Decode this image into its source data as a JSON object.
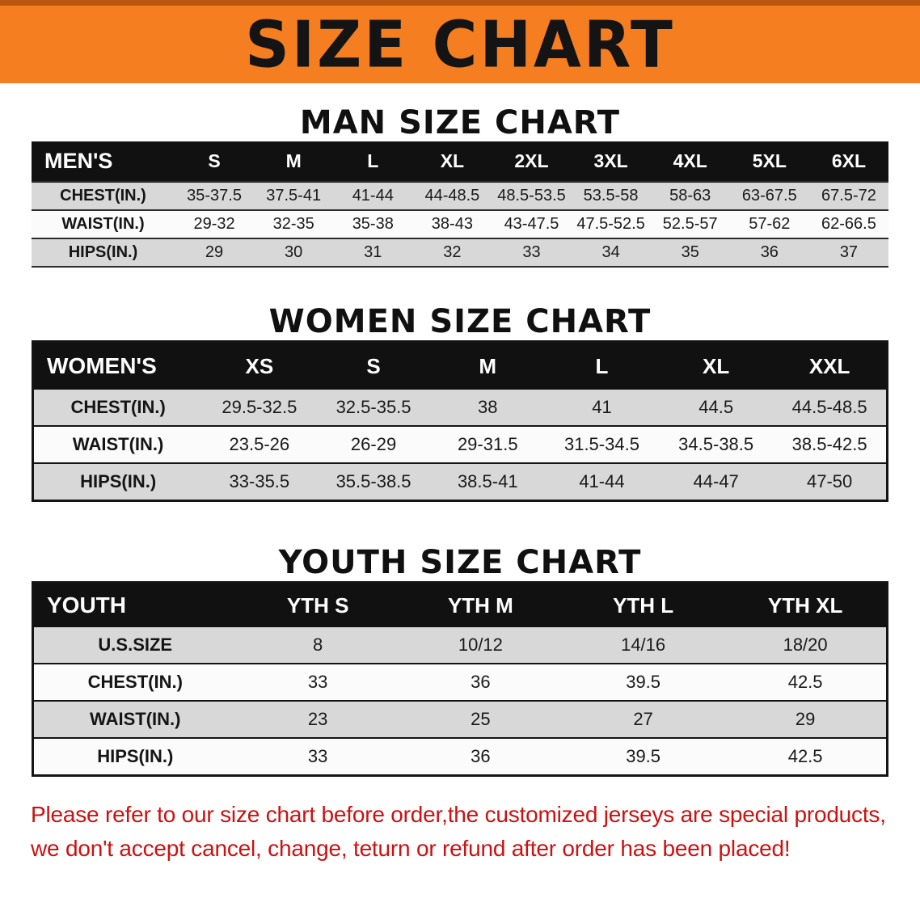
{
  "banner": {
    "title": "SIZE CHART"
  },
  "colors": {
    "banner_bg": "#F57E20",
    "banner_text": "#141414",
    "header_row_bg": "#111111",
    "row_gray": "#D8D8D8",
    "row_light": "#FBFBFB",
    "footer_text": "#CC1111"
  },
  "chart_data": [
    {
      "type": "table",
      "title": "MAN SIZE CHART",
      "header": [
        "MEN'S",
        "S",
        "M",
        "L",
        "XL",
        "2XL",
        "3XL",
        "4XL",
        "5XL",
        "6XL"
      ],
      "rows": [
        [
          "CHEST(IN.)",
          "35-37.5",
          "37.5-41",
          "41-44",
          "44-48.5",
          "48.5-53.5",
          "53.5-58",
          "58-63",
          "63-67.5",
          "67.5-72"
        ],
        [
          "WAIST(IN.)",
          "29-32",
          "32-35",
          "35-38",
          "38-43",
          "43-47.5",
          "47.5-52.5",
          "52.5-57",
          "57-62",
          "62-66.5"
        ],
        [
          "HIPS(IN.)",
          "29",
          "30",
          "31",
          "32",
          "33",
          "34",
          "35",
          "36",
          "37"
        ]
      ]
    },
    {
      "type": "table",
      "title": "WOMEN SIZE CHART",
      "header": [
        "WOMEN'S",
        "XS",
        "S",
        "M",
        "L",
        "XL",
        "XXL"
      ],
      "rows": [
        [
          "CHEST(IN.)",
          "29.5-32.5",
          "32.5-35.5",
          "38",
          "41",
          "44.5",
          "44.5-48.5"
        ],
        [
          "WAIST(IN.)",
          "23.5-26",
          "26-29",
          "29-31.5",
          "31.5-34.5",
          "34.5-38.5",
          "38.5-42.5"
        ],
        [
          "HIPS(IN.)",
          "33-35.5",
          "35.5-38.5",
          "38.5-41",
          "41-44",
          "44-47",
          "47-50"
        ]
      ]
    },
    {
      "type": "table",
      "title": "YOUTH SIZE CHART",
      "header": [
        "YOUTH",
        "YTH S",
        "YTH M",
        "YTH L",
        "YTH XL"
      ],
      "rows": [
        [
          "U.S.SIZE",
          "8",
          "10/12",
          "14/16",
          "18/20"
        ],
        [
          "CHEST(IN.)",
          "33",
          "36",
          "39.5",
          "42.5"
        ],
        [
          "WAIST(IN.)",
          "23",
          "25",
          "27",
          "29"
        ],
        [
          "HIPS(IN.)",
          "33",
          "36",
          "39.5",
          "42.5"
        ]
      ]
    }
  ],
  "footer": {
    "line1": "Please refer to our size chart before order,the customized jerseys are special products,",
    "line2": "we don't accept cancel, change, teturn or refund after order has been placed!"
  }
}
